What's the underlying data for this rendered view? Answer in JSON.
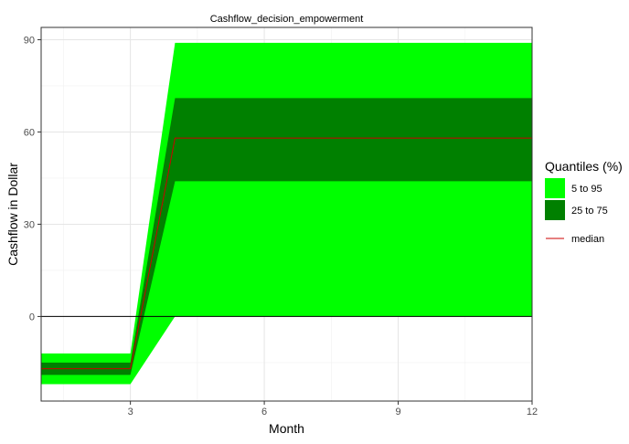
{
  "chart_data": {
    "type": "area",
    "title": "Cashflow_decision_empowerment",
    "xlabel": "Month",
    "ylabel": "Cashflow in Dollar",
    "xlim": [
      1,
      12
    ],
    "ylim": [
      -27.5,
      94
    ],
    "x_ticks": [
      3,
      6,
      9,
      12
    ],
    "y_ticks": [
      0,
      30,
      60,
      90
    ],
    "grid": true,
    "zero_line": true,
    "legend_position": "right",
    "legend_title": "Quantiles (%)",
    "x": [
      1,
      2,
      3,
      4,
      5,
      6,
      7,
      8,
      9,
      10,
      11,
      12
    ],
    "series": [
      {
        "name": "5 to 95",
        "color": "#00ff00",
        "lower": [
          -22,
          -22,
          -22,
          0,
          0,
          0,
          0,
          0,
          0,
          0,
          0,
          0
        ],
        "upper": [
          -12,
          -12,
          -12,
          89,
          89,
          89,
          89,
          89,
          89,
          89,
          89,
          89
        ]
      },
      {
        "name": "25 to 75",
        "color": "#008000",
        "lower": [
          -19,
          -19,
          -19,
          44,
          44,
          44,
          44,
          44,
          44,
          44,
          44,
          44
        ],
        "upper": [
          -15,
          -15,
          -15,
          71,
          71,
          71,
          71,
          71,
          71,
          71,
          71,
          71
        ]
      },
      {
        "name": "median",
        "color": "#cc0000",
        "values": [
          -17,
          -17,
          -17,
          58,
          58,
          58,
          58,
          58,
          58,
          58,
          58,
          58
        ]
      }
    ]
  }
}
